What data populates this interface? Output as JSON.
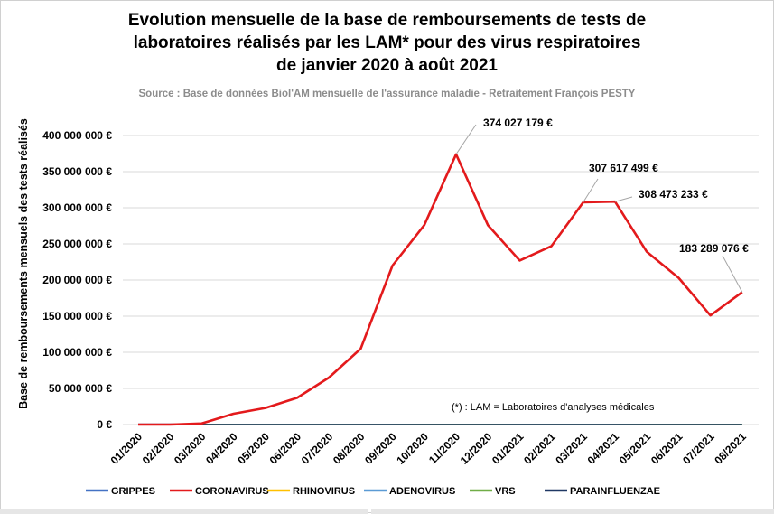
{
  "chart_data": {
    "type": "line",
    "title_lines": [
      "Evolution mensuelle de la base de remboursements de tests de",
      "laboratoires réalisés par les LAM* pour des virus respiratoires",
      "de janvier 2020 à août  2021"
    ],
    "subtitle": "Source : Base de données Biol'AM mensuelle de l'assurance maladie - Retraitement François PESTY",
    "ylabel": "Base de remboursements mensuels des tests réalisés",
    "ylim": [
      0,
      400000000
    ],
    "yticks": [
      0,
      50000000,
      100000000,
      150000000,
      200000000,
      250000000,
      300000000,
      350000000,
      400000000
    ],
    "ytick_labels": [
      "0 €",
      "50 000 000 €",
      "100 000 000 €",
      "150 000 000 €",
      "200 000 000 €",
      "250 000 000 €",
      "300 000 000 €",
      "350 000 000 €",
      "400 000 000 €"
    ],
    "grid": true,
    "categories": [
      "01/2020",
      "02/2020",
      "03/2020",
      "04/2020",
      "05/2020",
      "06/2020",
      "07/2020",
      "08/2020",
      "09/2020",
      "10/2020",
      "11/2020",
      "12/2020",
      "01/2021",
      "02/2021",
      "03/2021",
      "04/2021",
      "05/2021",
      "06/2021",
      "07/2021",
      "08/2021"
    ],
    "series": [
      {
        "name": "GRIPPES",
        "color": "#4472c4",
        "values": [
          500000,
          500000,
          300000,
          100000,
          50000,
          50000,
          50000,
          50000,
          100000,
          100000,
          100000,
          100000,
          100000,
          100000,
          100000,
          100000,
          100000,
          100000,
          100000,
          100000
        ]
      },
      {
        "name": "CORONAVIRUS",
        "color": "#e31a1c",
        "values": [
          0,
          0,
          1500000,
          15000000,
          23000000,
          37000000,
          65000000,
          105000000,
          220000000,
          276000000,
          374027179,
          276000000,
          227000000,
          247000000,
          307617499,
          308473233,
          239000000,
          203000000,
          151000000,
          183289076
        ]
      },
      {
        "name": "RHINOVIRUS",
        "color": "#ffc000",
        "values": [
          50000,
          50000,
          50000,
          20000,
          20000,
          20000,
          20000,
          20000,
          50000,
          50000,
          50000,
          50000,
          50000,
          50000,
          50000,
          50000,
          50000,
          50000,
          50000,
          50000
        ]
      },
      {
        "name": "ADENOVIRUS",
        "color": "#5b9bd5",
        "values": [
          50000,
          50000,
          50000,
          20000,
          20000,
          20000,
          20000,
          20000,
          50000,
          50000,
          50000,
          50000,
          50000,
          50000,
          50000,
          50000,
          50000,
          50000,
          50000,
          50000
        ]
      },
      {
        "name": "VRS",
        "color": "#70ad47",
        "values": [
          300000,
          200000,
          100000,
          20000,
          20000,
          20000,
          20000,
          20000,
          50000,
          100000,
          100000,
          100000,
          50000,
          50000,
          50000,
          50000,
          100000,
          100000,
          100000,
          100000
        ]
      },
      {
        "name": "PARAINFLUENZAE",
        "color": "#203864",
        "values": [
          50000,
          50000,
          50000,
          20000,
          20000,
          20000,
          20000,
          20000,
          50000,
          50000,
          50000,
          50000,
          50000,
          50000,
          50000,
          50000,
          50000,
          50000,
          50000,
          50000
        ]
      }
    ],
    "data_labels": [
      {
        "series": "CORONAVIRUS",
        "category": "11/2020",
        "text": "374 027 179 €"
      },
      {
        "series": "CORONAVIRUS",
        "category": "03/2021",
        "text": "307 617 499 €"
      },
      {
        "series": "CORONAVIRUS",
        "category": "04/2021",
        "text": "308 473 233 €"
      },
      {
        "series": "CORONAVIRUS",
        "category": "08/2021",
        "text": "183 289 076 €"
      }
    ],
    "annotation": "(*) : LAM = Laboratoires d'analyses médicales",
    "legend_position": "bottom"
  }
}
